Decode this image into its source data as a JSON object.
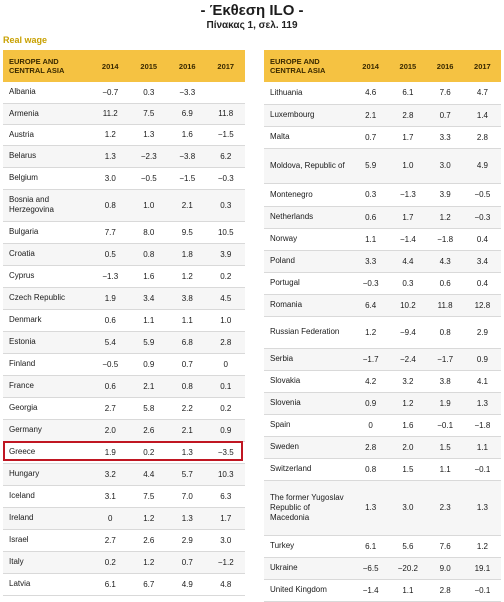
{
  "header": {
    "title": "- Έκθεση ILO -",
    "subtitle": "Πίνακας 1, σελ. 119",
    "label": "Real wage"
  },
  "left_table": {
    "region_header": "EUROPE AND CENTRAL ASIA",
    "years": [
      "2014",
      "2015",
      "2016",
      "2017"
    ],
    "rows": [
      {
        "country": "Albania",
        "values": [
          "−0.7",
          "0.3",
          "−3.3",
          ""
        ]
      },
      {
        "country": "Armenia",
        "values": [
          "11.2",
          "7.5",
          "6.9",
          "11.8"
        ]
      },
      {
        "country": "Austria",
        "values": [
          "1.2",
          "1.3",
          "1.6",
          "−1.5"
        ]
      },
      {
        "country": "Belarus",
        "values": [
          "1.3",
          "−2.3",
          "−3.8",
          "6.2"
        ]
      },
      {
        "country": "Belgium",
        "values": [
          "3.0",
          "−0.5",
          "−1.5",
          "−0.3"
        ]
      },
      {
        "country": "Bosnia and Herzegovina",
        "values": [
          "0.8",
          "1.0",
          "2.1",
          "0.3"
        ]
      },
      {
        "country": "Bulgaria",
        "values": [
          "7.7",
          "8.0",
          "9.5",
          "10.5"
        ]
      },
      {
        "country": "Croatia",
        "values": [
          "0.5",
          "0.8",
          "1.8",
          "3.9"
        ]
      },
      {
        "country": "Cyprus",
        "values": [
          "−1.3",
          "1.6",
          "1.2",
          "0.2"
        ]
      },
      {
        "country": "Czech Republic",
        "values": [
          "1.9",
          "3.4",
          "3.8",
          "4.5"
        ]
      },
      {
        "country": "Denmark",
        "values": [
          "0.6",
          "1.1",
          "1.1",
          "1.0"
        ]
      },
      {
        "country": "Estonia",
        "values": [
          "5.4",
          "5.9",
          "6.8",
          "2.8"
        ]
      },
      {
        "country": "Finland",
        "values": [
          "−0.5",
          "0.9",
          "0.7",
          "0"
        ]
      },
      {
        "country": "France",
        "values": [
          "0.6",
          "2.1",
          "0.8",
          "0.1"
        ]
      },
      {
        "country": "Georgia",
        "values": [
          "2.7",
          "5.8",
          "2.2",
          "0.2"
        ]
      },
      {
        "country": "Germany",
        "values": [
          "2.0",
          "2.6",
          "2.1",
          "0.9"
        ]
      },
      {
        "country": "Greece",
        "values": [
          "1.9",
          "0.2",
          "1.3",
          "−3.5"
        ]
      },
      {
        "country": "Hungary",
        "values": [
          "3.2",
          "4.4",
          "5.7",
          "10.3"
        ]
      },
      {
        "country": "Iceland",
        "values": [
          "3.1",
          "7.5",
          "7.0",
          "6.3"
        ]
      },
      {
        "country": "Ireland",
        "values": [
          "0",
          "1.2",
          "1.3",
          "1.7"
        ]
      },
      {
        "country": "Israel",
        "values": [
          "2.7",
          "2.6",
          "2.9",
          "3.0"
        ]
      },
      {
        "country": "Italy",
        "values": [
          "0.2",
          "1.2",
          "0.7",
          "−1.2"
        ]
      },
      {
        "country": "Latvia",
        "values": [
          "6.1",
          "6.7",
          "4.9",
          "4.8"
        ]
      }
    ]
  },
  "right_table": {
    "region_header": "EUROPE AND CENTRAL ASIA",
    "years": [
      "2014",
      "2015",
      "2016",
      "2017"
    ],
    "rows": [
      {
        "country": "Lithuania",
        "values": [
          "4.6",
          "6.1",
          "7.6",
          "4.7"
        ]
      },
      {
        "country": "Luxembourg",
        "values": [
          "2.1",
          "2.8",
          "0.7",
          "1.4"
        ]
      },
      {
        "country": "Malta",
        "values": [
          "0.7",
          "1.7",
          "3.3",
          "2.8"
        ]
      },
      {
        "country": "Moldova, Republic of",
        "values": [
          "5.9",
          "1.0",
          "3.0",
          "4.9"
        ]
      },
      {
        "country": "Montenegro",
        "values": [
          "0.3",
          "−1.3",
          "3.9",
          "−0.5"
        ]
      },
      {
        "country": "Netherlands",
        "values": [
          "0.6",
          "1.7",
          "1.2",
          "−0.3"
        ]
      },
      {
        "country": "Norway",
        "values": [
          "1.1",
          "−1.4",
          "−1.8",
          "0.4"
        ]
      },
      {
        "country": "Poland",
        "values": [
          "3.3",
          "4.4",
          "4.3",
          "3.4"
        ]
      },
      {
        "country": "Portugal",
        "values": [
          "−0.3",
          "0.3",
          "0.6",
          "0.4"
        ]
      },
      {
        "country": "Romania",
        "values": [
          "6.4",
          "10.2",
          "11.8",
          "12.8"
        ]
      },
      {
        "country": "Russian Federation",
        "values": [
          "1.2",
          "−9.4",
          "0.8",
          "2.9"
        ]
      },
      {
        "country": "Serbia",
        "values": [
          "−1.7",
          "−2.4",
          "−1.7",
          "0.9"
        ]
      },
      {
        "country": "Slovakia",
        "values": [
          "4.2",
          "3.2",
          "3.8",
          "4.1"
        ]
      },
      {
        "country": "Slovenia",
        "values": [
          "0.9",
          "1.2",
          "1.9",
          "1.3"
        ]
      },
      {
        "country": "Spain",
        "values": [
          "0",
          "1.6",
          "−0.1",
          "−1.8"
        ]
      },
      {
        "country": "Sweden",
        "values": [
          "2.8",
          "2.0",
          "1.5",
          "1.1"
        ]
      },
      {
        "country": "Switzerland",
        "values": [
          "0.8",
          "1.5",
          "1.1",
          "−0.1"
        ]
      },
      {
        "country": "The former Yugoslav Republic of Macedonia",
        "values": [
          "1.3",
          "3.0",
          "2.3",
          "1.3"
        ]
      },
      {
        "country": "Turkey",
        "values": [
          "6.1",
          "5.6",
          "7.6",
          "1.2"
        ]
      },
      {
        "country": "Ukraine",
        "values": [
          "−6.5",
          "−20.2",
          "9.0",
          "19.1"
        ]
      },
      {
        "country": "United Kingdom",
        "values": [
          "−1.4",
          "1.1",
          "2.8",
          "−0.1"
        ]
      }
    ]
  }
}
